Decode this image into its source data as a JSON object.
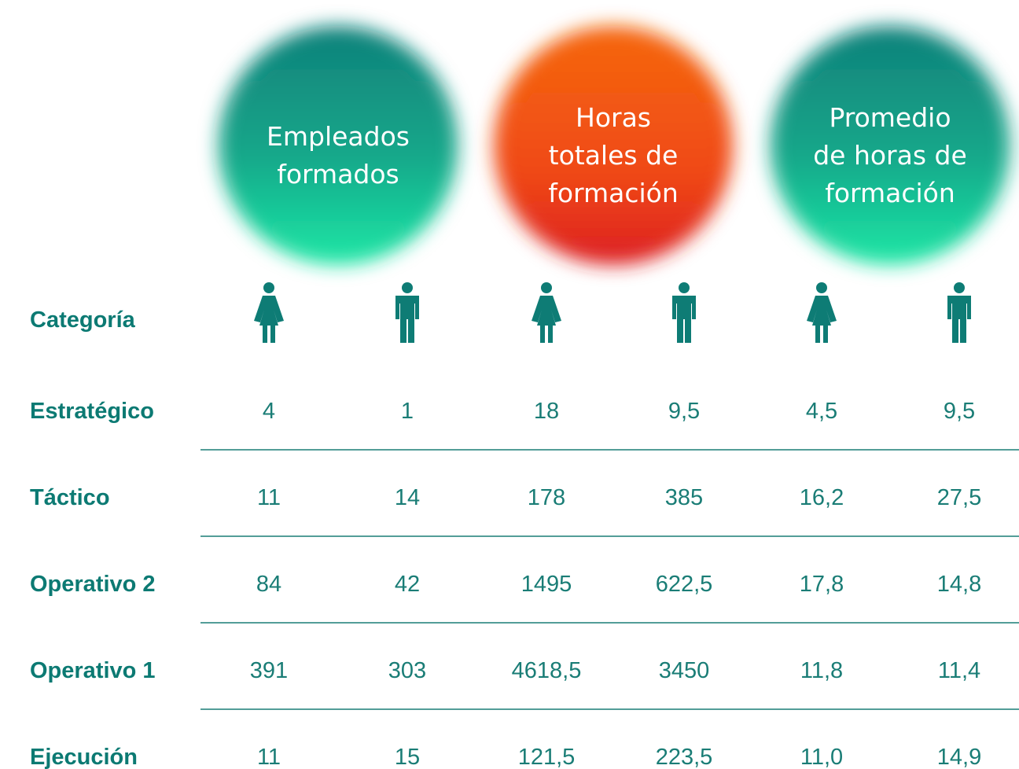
{
  "header_groups": [
    {
      "lines": [
        "Empleados",
        "formados"
      ]
    },
    {
      "lines": [
        "Horas",
        "totales de",
        "formación"
      ]
    },
    {
      "lines": [
        "Promedio",
        "de horas de",
        "formación"
      ]
    }
  ],
  "table": {
    "header": "Categoría",
    "rows": [
      [
        "Estratégico",
        "4",
        "1",
        "18",
        "9,5",
        "4,5",
        "9,5"
      ],
      [
        "Táctico",
        "11",
        "14",
        "178",
        "385",
        "16,2",
        "27,5"
      ],
      [
        "Operativo 2",
        "84",
        "42",
        "1495",
        "622,5",
        "17,8",
        "14,8"
      ],
      [
        "Operativo 1",
        "391",
        "303",
        "4618,5",
        "3450",
        "11,8",
        "11,4"
      ],
      [
        "Ejecución",
        "11",
        "15",
        "121,5",
        "223,5",
        "11,0",
        "14,9"
      ]
    ]
  }
}
